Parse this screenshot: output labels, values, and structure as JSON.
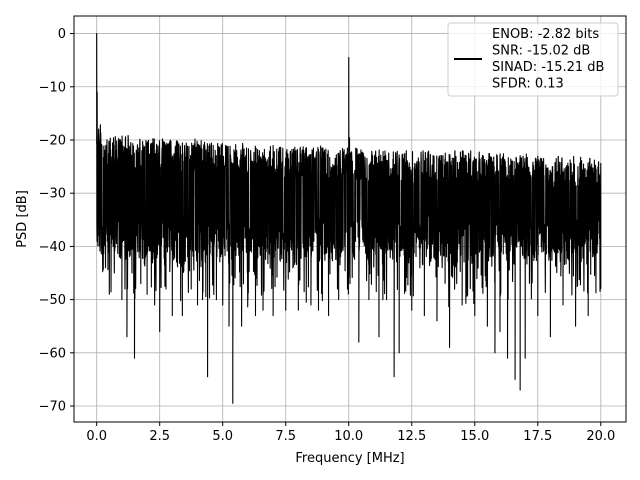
{
  "chart_data": {
    "type": "line",
    "title": "",
    "xlabel": "Frequency [MHz]",
    "ylabel": "PSD [dB]",
    "xlim": [
      -0.9,
      21.0
    ],
    "ylim": [
      -73.0,
      3.3
    ],
    "xticks": [
      0.0,
      2.5,
      5.0,
      7.5,
      10.0,
      12.5,
      15.0,
      17.5,
      20.0
    ],
    "xtick_labels": [
      "0.0",
      "2.5",
      "5.0",
      "7.5",
      "10.0",
      "12.5",
      "15.0",
      "17.5",
      "20.0"
    ],
    "yticks": [
      0,
      -10,
      -20,
      -30,
      -40,
      -50,
      -60,
      -70
    ],
    "ytick_labels": [
      "0",
      "−10",
      "−20",
      "−30",
      "−40",
      "−50",
      "−60",
      "−70"
    ],
    "grid": true,
    "legend_placement": "top-right",
    "line_color": "#000000",
    "series": [
      {
        "name": "ENOB: -2.82 bits\nSNR: -15.02 dB\nSINAD: -15.21 dB\nSFDR: 0.13",
        "legend_lines": [
          "ENOB: -2.82 bits",
          "SNR: -15.02 dB",
          "SINAD: -15.21 dB",
          "SFDR: 0.13"
        ],
        "x": [
          0.0,
          0.02,
          0.05,
          0.1,
          0.2,
          0.35,
          0.5,
          0.7,
          0.9,
          1.0,
          1.2,
          1.4,
          1.5,
          1.75,
          2.0,
          2.3,
          2.5,
          2.75,
          3.0,
          3.4,
          3.75,
          4.0,
          4.2,
          4.4,
          4.75,
          5.0,
          5.25,
          5.4,
          5.75,
          6.0,
          6.3,
          6.6,
          7.0,
          7.5,
          8.0,
          8.5,
          8.8,
          9.2,
          9.6,
          9.95,
          10.0,
          10.05,
          10.4,
          10.8,
          11.2,
          11.5,
          11.8,
          12.0,
          12.5,
          13.0,
          13.5,
          14.0,
          14.5,
          15.0,
          15.5,
          15.8,
          16.0,
          16.3,
          16.6,
          16.8,
          17.0,
          17.5,
          18.0,
          18.5,
          19.0,
          19.5,
          20.0
        ],
        "y": [
          0.0,
          -11.0,
          -35.0,
          -38.0,
          -40.0,
          -44.0,
          -49.0,
          -45.0,
          -42.0,
          -50.0,
          -57.0,
          -45.0,
          -61.0,
          -47.0,
          -49.0,
          -51.0,
          -56.0,
          -48.0,
          -53.0,
          -53.0,
          -48.0,
          -51.0,
          -50.0,
          -64.5,
          -50.0,
          -51.0,
          -55.0,
          -69.5,
          -55.0,
          -50.0,
          -53.0,
          -52.0,
          -53.0,
          -52.0,
          -52.0,
          -51.0,
          -52.0,
          -53.0,
          -50.0,
          -48.0,
          -4.5,
          -47.0,
          -58.0,
          -50.0,
          -57.0,
          -50.0,
          -64.5,
          -60.0,
          -52.0,
          -53.0,
          -54.0,
          -59.0,
          -51.0,
          -53.0,
          -55.0,
          -60.0,
          -56.0,
          -61.0,
          -65.0,
          -67.0,
          -61.0,
          -53.0,
          -57.0,
          -51.0,
          -55.0,
          -53.0,
          -48.0
        ],
        "envelope_upper": [
          0.0,
          -11.0,
          -12.0,
          -15.0,
          -18.0,
          -19.0,
          -19.5,
          -19.0,
          -19.5,
          -19.0,
          -19.0,
          -19.5,
          -19.5,
          -19.0,
          -20.0,
          -19.5,
          -20.0,
          -19.5,
          -20.0,
          -20.0,
          -19.5,
          -20.0,
          -20.0,
          -20.5,
          -20.5,
          -20.5,
          -20.5,
          -20.5,
          -20.5,
          -21.0,
          -21.0,
          -21.0,
          -21.0,
          -21.0,
          -21.0,
          -21.0,
          -21.0,
          -21.5,
          -21.5,
          -21.5,
          -4.5,
          -21.5,
          -21.5,
          -22.0,
          -21.5,
          -21.5,
          -22.0,
          -22.0,
          -22.0,
          -22.0,
          -22.0,
          -22.0,
          -22.0,
          -22.0,
          -22.5,
          -22.5,
          -22.5,
          -22.5,
          -22.5,
          -22.5,
          -22.5,
          -22.5,
          -23.0,
          -23.0,
          -23.0,
          -23.0,
          -24.0
        ]
      }
    ]
  }
}
